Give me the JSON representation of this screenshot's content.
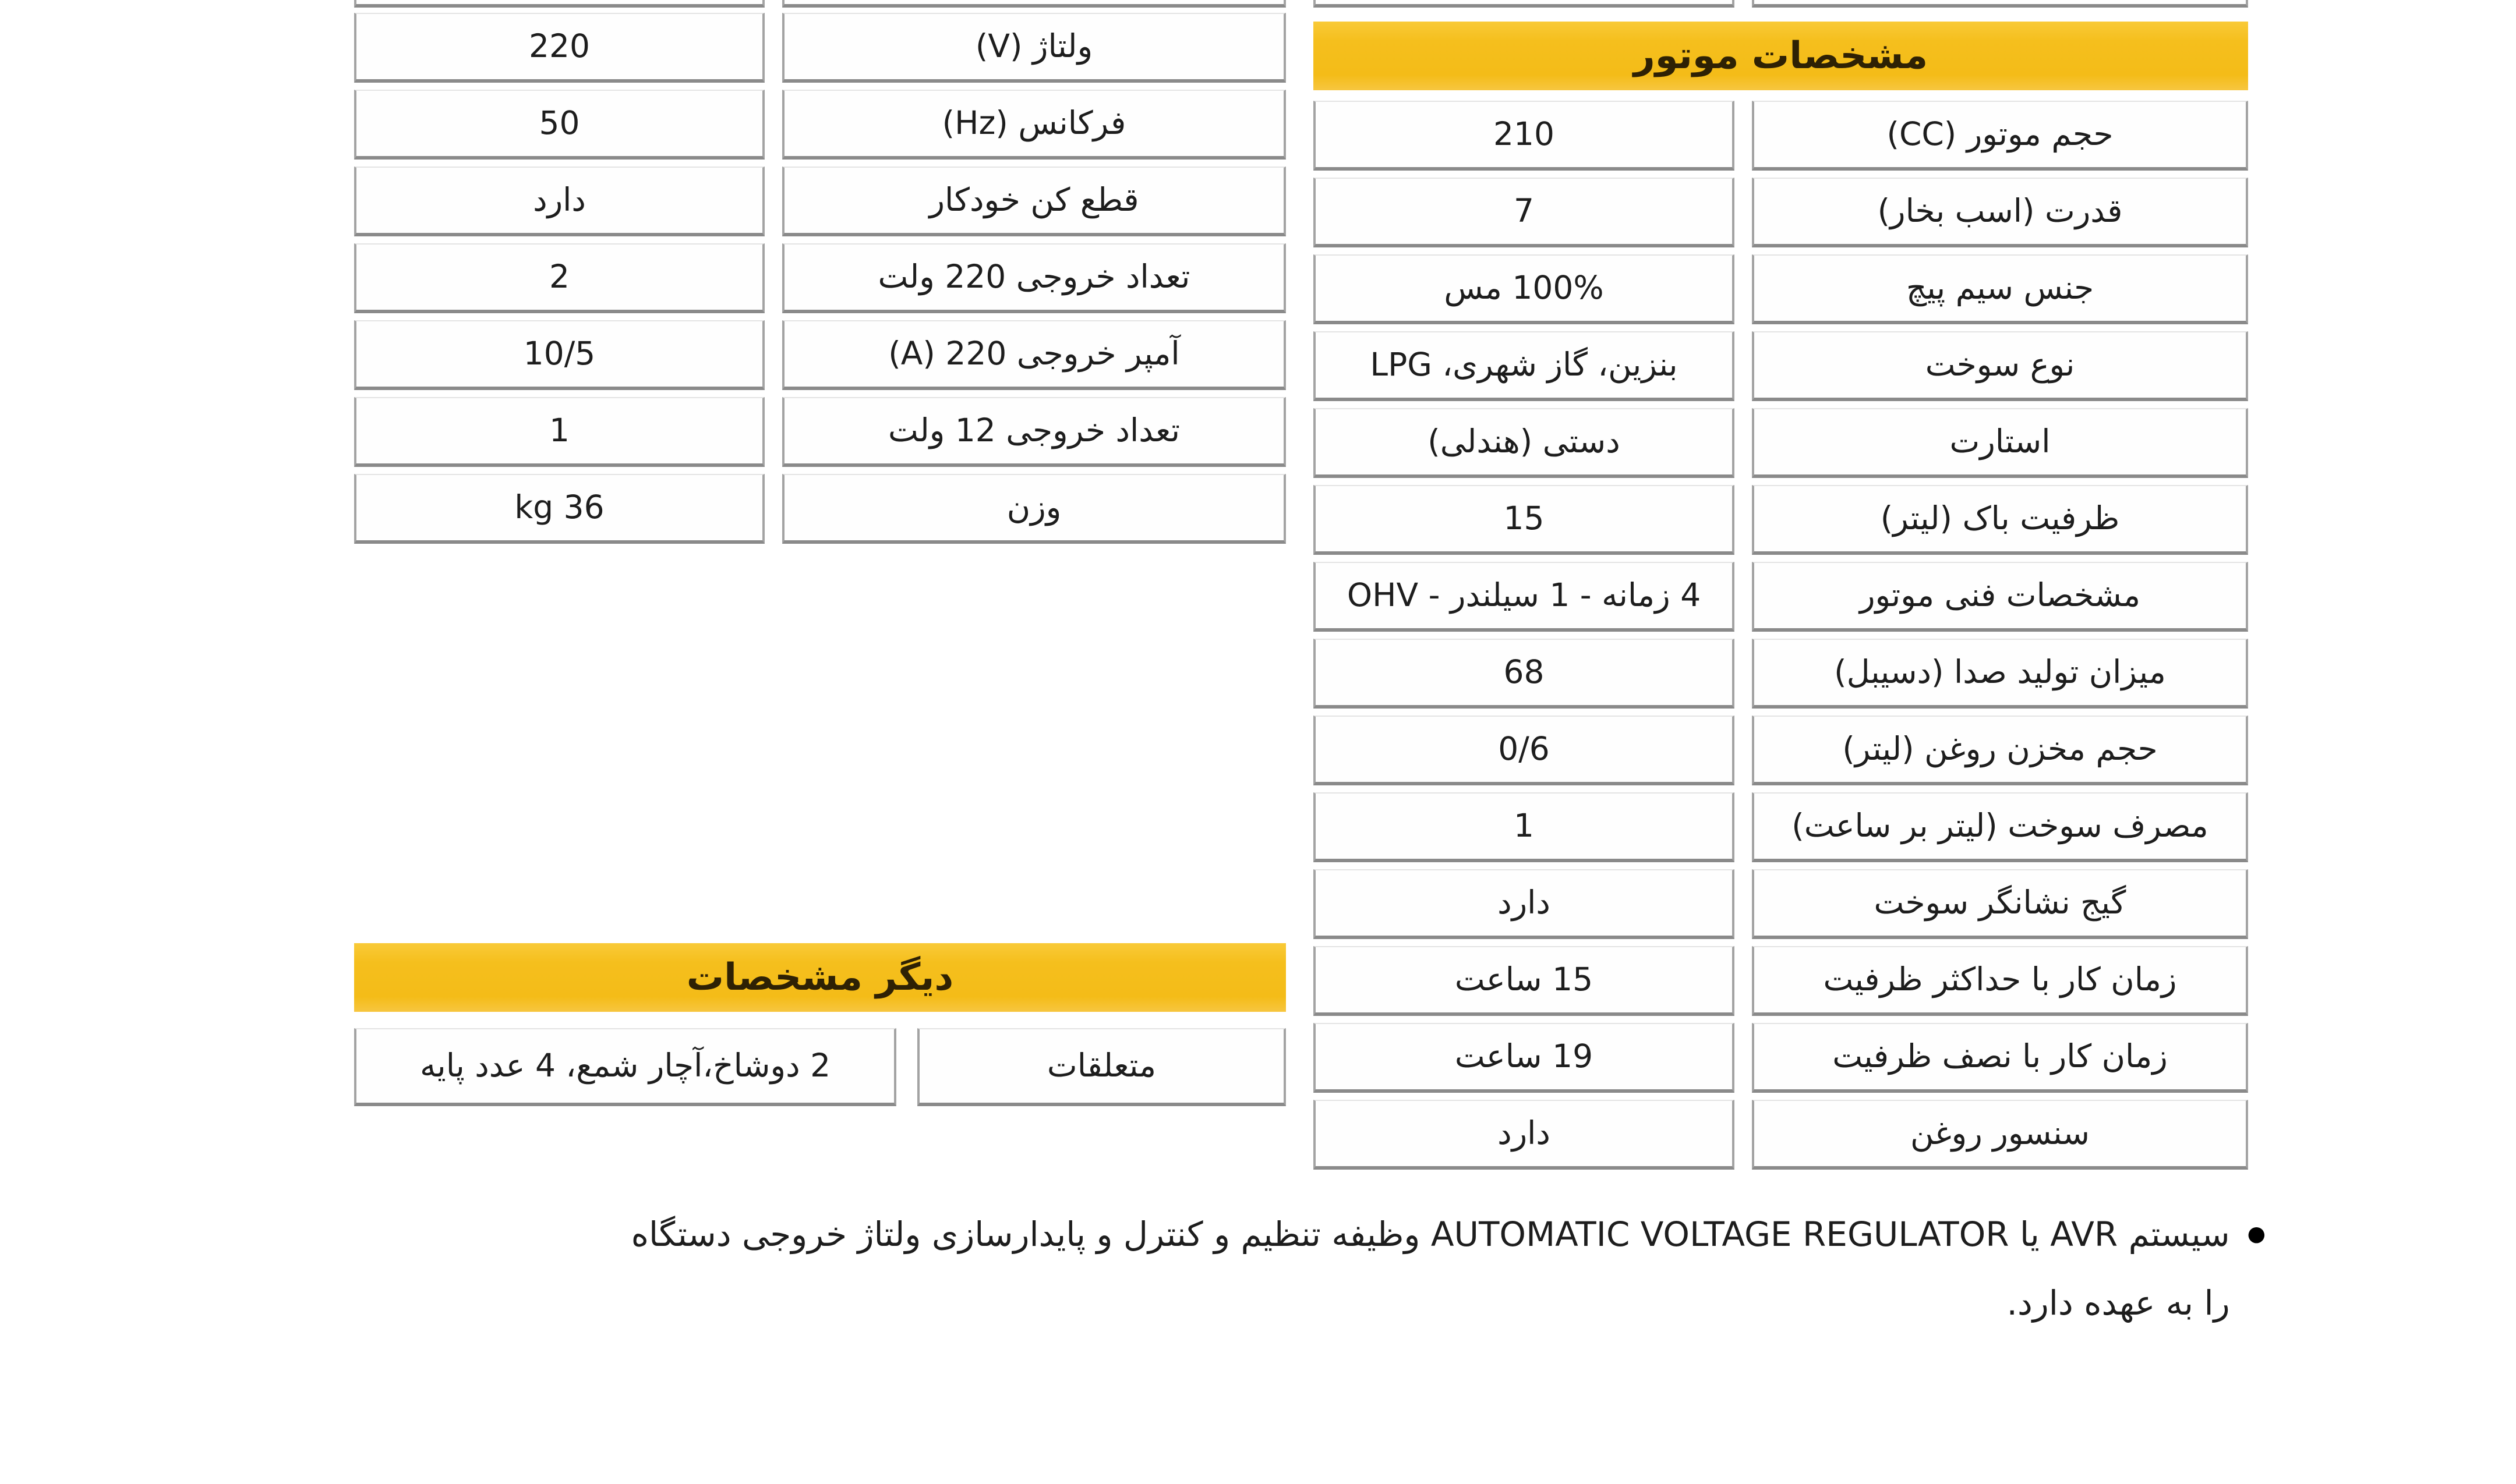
{
  "theme": {
    "accent_yellow": "#f5bf1d",
    "header_text_color": "#2e2104",
    "border_dark": "#8a8a8a",
    "border_light": "#a3a3a3",
    "text_color": "#1d1d1d"
  },
  "motor_section": {
    "title": "مشخصات موتور",
    "rows": [
      {
        "label": "حجم موتور (CC)",
        "value": "210"
      },
      {
        "label": "قدرت (اسب بخار)",
        "value": "7"
      },
      {
        "label": "جنس سیم پیچ",
        "value": "100% مس"
      },
      {
        "label": "نوع سوخت",
        "value": "بنزین، گاز شهری، LPG"
      },
      {
        "label": "استارت",
        "value": "دستی (هندلی)"
      },
      {
        "label": "ظرفیت باک (لیتر)",
        "value": "15"
      },
      {
        "label": "مشخصات فنی موتور",
        "value": "4 زمانه - 1 سیلندر - OHV"
      },
      {
        "label": "میزان تولید صدا (دسیبل)",
        "value": "68"
      },
      {
        "label": "حجم مخزن روغن (لیتر)",
        "value": "0/6"
      },
      {
        "label": "مصرف سوخت (لیتر بر ساعت)",
        "value": "1"
      },
      {
        "label": "گیج نشانگر سوخت",
        "value": "دارد"
      },
      {
        "label": "زمان کار با حداکثر ظرفیت",
        "value": "15 ساعت"
      },
      {
        "label": "زمان کار با نصف ظرفیت",
        "value": "19 ساعت"
      },
      {
        "label": "سنسور روغن",
        "value": "دارد"
      }
    ]
  },
  "electrical_section": {
    "rows": [
      {
        "label": "ولتاژ (V)",
        "value": "220"
      },
      {
        "label": "فرکانس (Hz)",
        "value": "50"
      },
      {
        "label": "قطع کن خودکار",
        "value": "دارد"
      },
      {
        "label": "تعداد خروجی 220 ولت",
        "value": "2"
      },
      {
        "label": "آمپر خروجی 220 (A)",
        "value": "10/5"
      },
      {
        "label": "تعداد خروجی 12 ولت",
        "value": "1"
      },
      {
        "label": "وزن",
        "value": "36 kg"
      }
    ]
  },
  "other_section": {
    "title": "دیگر مشخصات",
    "rows": [
      {
        "label": "متعلقات",
        "value": "2 دوشاخ،آچار شمع، 4 عدد پایه"
      }
    ]
  },
  "footnote": {
    "bullet": "●",
    "line1": "سیستم AVR یا AUTOMATIC VOLTAGE REGULATOR وظیفه تنظیم و کنترل و پایدارسازی ولتاژ خروجی دستگاه",
    "line2": "را به عهده دارد."
  }
}
